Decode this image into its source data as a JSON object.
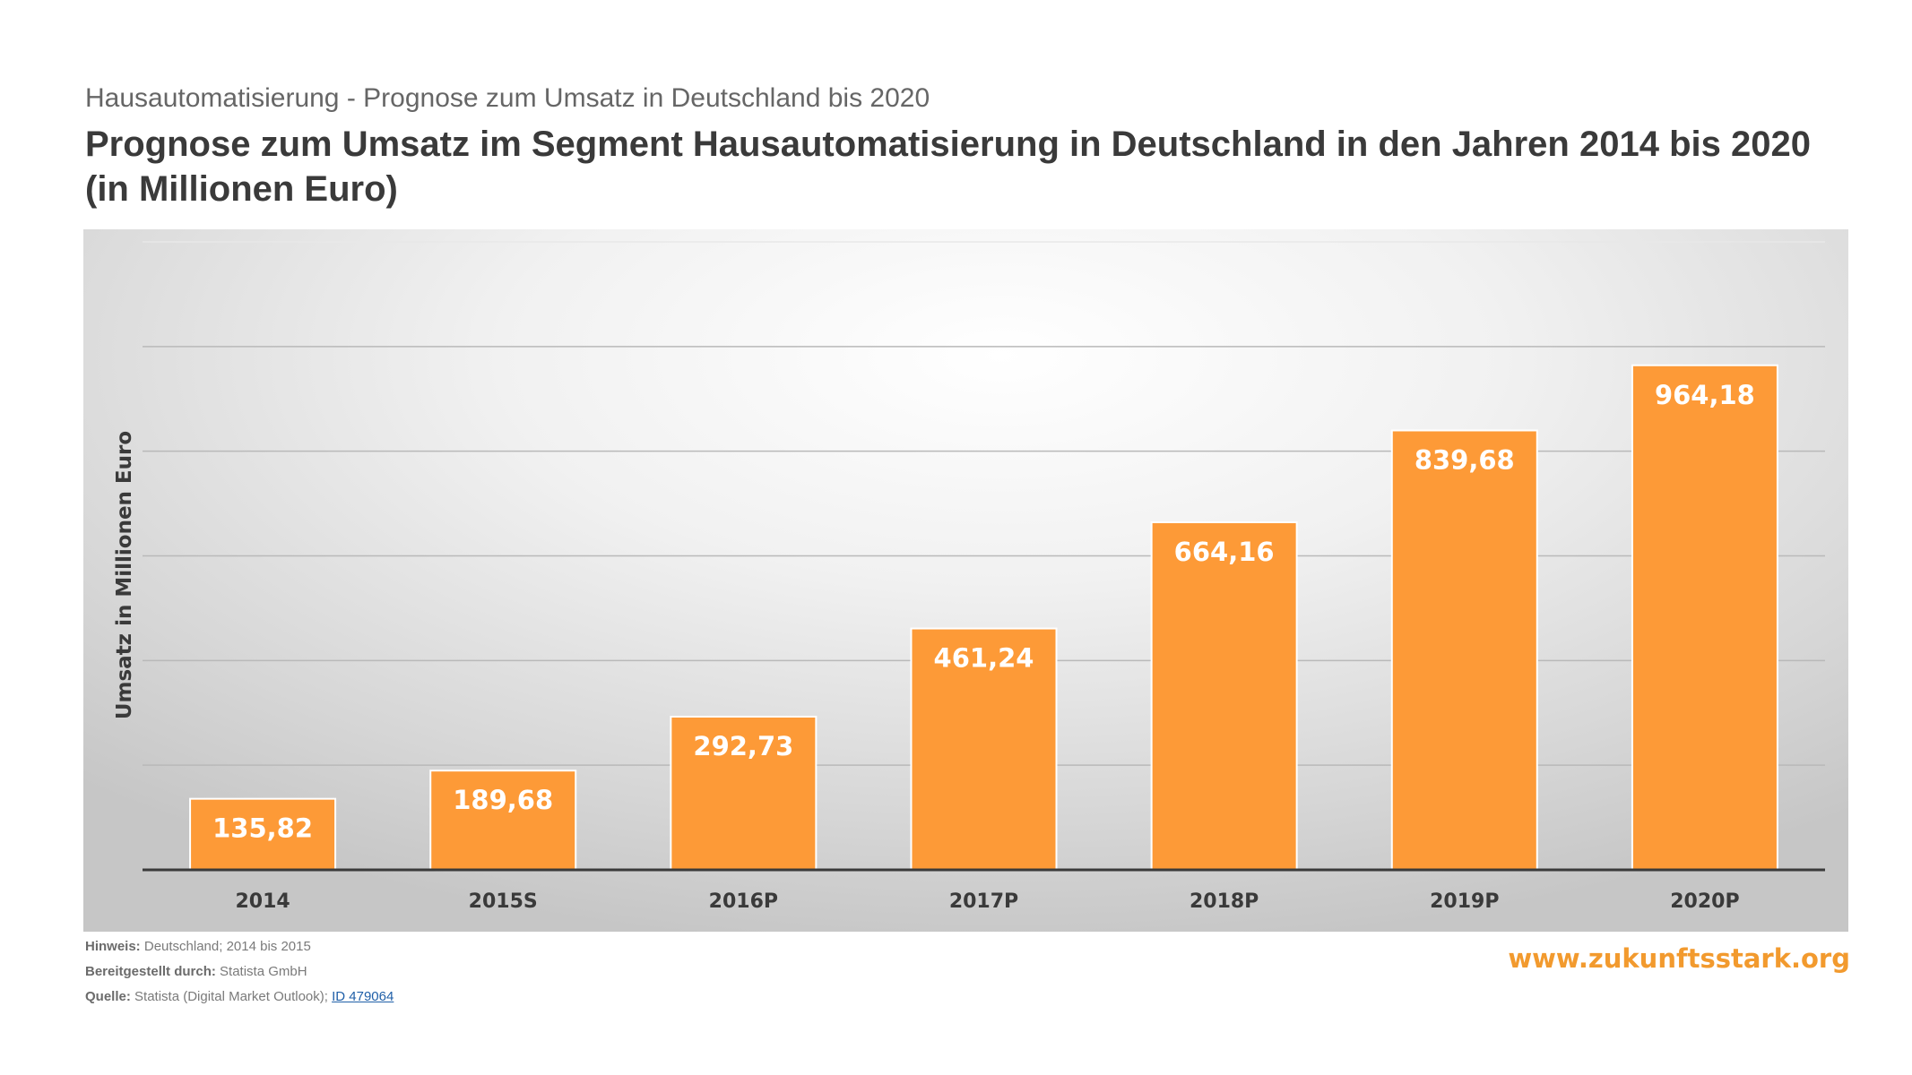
{
  "header": {
    "subtitle": "Hausautomatisierung  - Prognose zum Umsatz in Deutschland bis 2020",
    "title": "Prognose zum Umsatz im Segment Hausautomatisierung  in Deutschland  in den Jahren 2014 bis 2020 (in Millionen Euro)"
  },
  "chart_data": {
    "type": "bar",
    "categories": [
      "2014",
      "2015S",
      "2016P",
      "2017P",
      "2018P",
      "2019P",
      "2020P"
    ],
    "values": [
      135.82,
      189.68,
      292.73,
      461.24,
      664.16,
      839.68,
      964.18
    ],
    "value_labels": [
      "135,82",
      "189,68",
      "292,73",
      "461,24",
      "664,16",
      "839,68",
      "964,18"
    ],
    "ylabel": "Umsatz in Millionen Euro",
    "xlabel": "",
    "ylim": [
      0,
      1200
    ],
    "grid": true,
    "colors": {
      "bar": "#fd9a37",
      "bar_label": "#ffffff",
      "tick_label": "#3a3a3a",
      "grid": "#b9b9b9",
      "axis": "#3a3a3a"
    }
  },
  "footer": {
    "hint_label": "Hinweis:",
    "hint_value": "Deutschland; 2014 bis 2015",
    "provided_label": "Bereitgestellt durch:",
    "provided_value": "Statista GmbH",
    "source_label": "Quelle:",
    "source_value": "Statista (Digital Market Outlook);",
    "source_link": "ID 479064"
  },
  "watermark": "www.zukunftsstark.org"
}
